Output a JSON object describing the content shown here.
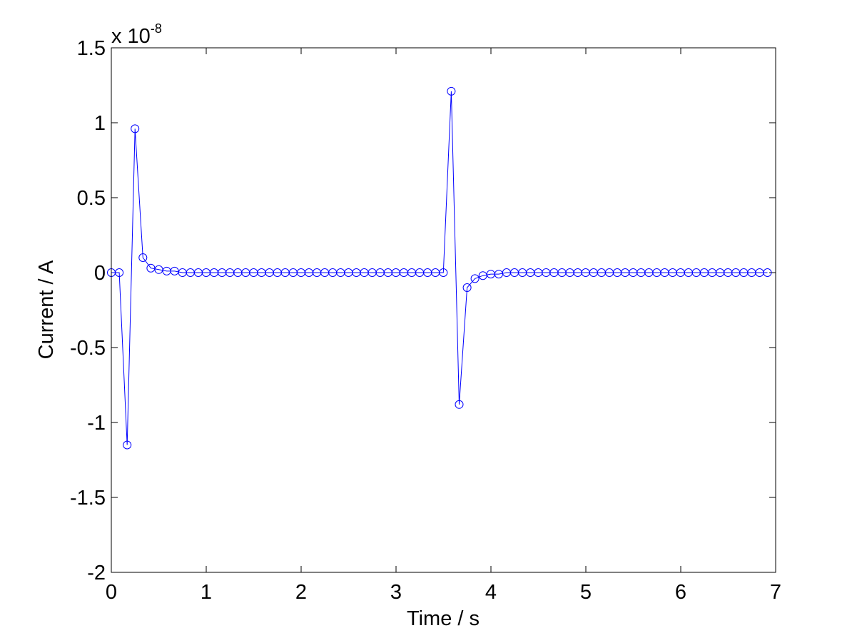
{
  "chart_data": {
    "type": "line",
    "title": "",
    "xlabel": "Time / s",
    "ylabel": "Current / A",
    "xlim": [
      0,
      7
    ],
    "ylim": [
      -2,
      1.5
    ],
    "y_multiplier_base": "x 10",
    "y_multiplier_exponent": "-8",
    "x_ticks": [
      "0",
      "1",
      "2",
      "3",
      "4",
      "5",
      "6",
      "7"
    ],
    "y_ticks": [
      "1.5",
      "1",
      "0.5",
      "0",
      "-0.5",
      "-1",
      "-1.5",
      "-2"
    ],
    "grid": false,
    "legend": "none",
    "marker": "circle",
    "series_color": "#0000ff",
    "x_step": 0.0833,
    "series": [
      {
        "values": [
          0,
          0,
          -1.15,
          0.96,
          0.1,
          0.03,
          0.02,
          0.01,
          0.01,
          0,
          0,
          0,
          0,
          0,
          0,
          0,
          0,
          0,
          0,
          0,
          0,
          0,
          0,
          0,
          0,
          0,
          0,
          0,
          0,
          0,
          0,
          0,
          0,
          0,
          0,
          0,
          0,
          0,
          0,
          0,
          0,
          0,
          0,
          1.21,
          -0.88,
          -0.1,
          -0.04,
          -0.02,
          -0.01,
          -0.01,
          0,
          0,
          0,
          0,
          0,
          0,
          0,
          0,
          0,
          0,
          0,
          0,
          0,
          0,
          0,
          0,
          0,
          0,
          0,
          0,
          0,
          0,
          0,
          0,
          0,
          0,
          0,
          0,
          0,
          0,
          0,
          0,
          0,
          0
        ]
      }
    ]
  }
}
